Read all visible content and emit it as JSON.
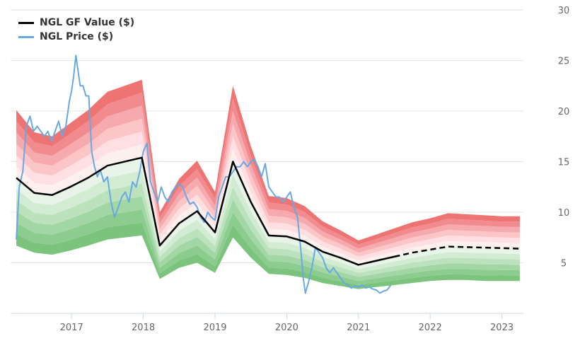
{
  "chart_data": {
    "type": "line",
    "title": "",
    "xlabel": "",
    "ylabel": "",
    "xlim": [
      2016.15,
      2023.3
    ],
    "ylim": [
      0,
      30
    ],
    "x_ticks": [
      {
        "value": 2017,
        "label": "2017"
      },
      {
        "value": 2018,
        "label": "2018"
      },
      {
        "value": 2019,
        "label": "2019"
      },
      {
        "value": 2020,
        "label": "2020"
      },
      {
        "value": 2021,
        "label": "2021"
      },
      {
        "value": 2022,
        "label": "2022"
      },
      {
        "value": 2023,
        "label": "2023"
      }
    ],
    "y_ticks": [
      {
        "value": 5,
        "label": "5"
      },
      {
        "value": 10,
        "label": "10"
      },
      {
        "value": 15,
        "label": "15"
      },
      {
        "value": 20,
        "label": "20"
      },
      {
        "value": 25,
        "label": "25"
      },
      {
        "value": 30,
        "label": "30"
      }
    ],
    "grid": true,
    "legend_position": "top-left",
    "band_colors": {
      "over": [
        "#fff0f0",
        "#ffdfe1",
        "#fcc5c8",
        "#f7aaae",
        "#f28b8f",
        "#ee7373"
      ],
      "under": [
        "#e8f4e8",
        "#d2ebd3",
        "#bce2bd",
        "#a2d6a4",
        "#8dcc8f",
        "#7cc47e"
      ]
    },
    "series": [
      {
        "name": "NGL GF Value ($)",
        "color": "#000000",
        "x": [
          2016.23,
          2016.48,
          2016.73,
          2016.98,
          2017.23,
          2017.5,
          2017.98,
          2018.23,
          2018.5,
          2018.75,
          2019.0,
          2019.25,
          2019.5,
          2019.75,
          2020.0,
          2020.25,
          2020.5,
          2020.75,
          2021.0,
          2021.25,
          2021.5,
          2021.75,
          2022.0,
          2022.25,
          2022.5,
          2022.75,
          2023.0,
          2023.25
        ],
        "values": [
          13.4,
          11.9,
          11.7,
          12.5,
          13.4,
          14.6,
          15.4,
          6.7,
          8.9,
          10.1,
          8.0,
          15.0,
          11.0,
          7.7,
          7.6,
          7.1,
          6.1,
          5.5,
          4.8,
          5.2,
          5.6,
          6.0,
          6.3,
          6.6,
          6.55,
          6.5,
          6.45,
          6.4
        ],
        "projected_from": 2021.5
      },
      {
        "name": "NGL Price ($)",
        "color": "#6aa8e4",
        "x": [
          2016.23,
          2016.27,
          2016.32,
          2016.37,
          2016.42,
          2016.47,
          2016.52,
          2016.57,
          2016.62,
          2016.67,
          2016.72,
          2016.77,
          2016.82,
          2016.87,
          2016.92,
          2016.97,
          2017.0,
          2017.03,
          2017.06,
          2017.09,
          2017.12,
          2017.16,
          2017.2,
          2017.24,
          2017.28,
          2017.32,
          2017.36,
          2017.4,
          2017.45,
          2017.5,
          2017.55,
          2017.6,
          2017.65,
          2017.7,
          2017.75,
          2017.8,
          2017.85,
          2017.9,
          2017.95,
          2018.0,
          2018.05,
          2018.1,
          2018.15,
          2018.2,
          2018.25,
          2018.3,
          2018.35,
          2018.4,
          2018.45,
          2018.5,
          2018.55,
          2018.6,
          2018.65,
          2018.7,
          2018.75,
          2018.8,
          2018.85,
          2018.9,
          2018.95,
          2019.0,
          2019.05,
          2019.1,
          2019.15,
          2019.2,
          2019.25,
          2019.3,
          2019.35,
          2019.4,
          2019.45,
          2019.5,
          2019.55,
          2019.6,
          2019.65,
          2019.7,
          2019.75,
          2019.8,
          2019.85,
          2019.9,
          2019.95,
          2020.0,
          2020.05,
          2020.1,
          2020.15,
          2020.2,
          2020.23,
          2020.26,
          2020.3,
          2020.35,
          2020.4,
          2020.45,
          2020.5,
          2020.55,
          2020.6,
          2020.65,
          2020.7,
          2020.75,
          2020.8,
          2020.85,
          2020.9,
          2020.95,
          2021.0,
          2021.05,
          2021.1,
          2021.15,
          2021.2,
          2021.25,
          2021.3,
          2021.35,
          2021.4,
          2021.45
        ],
        "values": [
          7.3,
          12.5,
          14.0,
          18.5,
          19.5,
          18.0,
          18.5,
          18.0,
          17.5,
          18.0,
          17.0,
          18.0,
          19.0,
          17.5,
          18.5,
          21.0,
          22.0,
          23.5,
          25.5,
          24.0,
          22.5,
          22.5,
          21.5,
          21.5,
          16.0,
          14.5,
          13.5,
          14.2,
          13.0,
          13.5,
          11.0,
          9.5,
          10.5,
          11.5,
          12.0,
          11.0,
          13.0,
          12.5,
          14.0,
          16.0,
          16.8,
          13.0,
          12.0,
          11.0,
          12.5,
          11.5,
          11.0,
          12.0,
          12.5,
          12.8,
          12.5,
          11.5,
          10.8,
          11.0,
          10.5,
          9.5,
          9.0,
          10.0,
          9.5,
          9.2,
          11.5,
          12.5,
          13.5,
          13.5,
          14.0,
          14.5,
          14.5,
          15.0,
          14.5,
          15.0,
          15.2,
          14.5,
          13.5,
          14.8,
          12.5,
          12.0,
          11.5,
          11.5,
          11.0,
          11.5,
          12.0,
          10.5,
          9.5,
          6.0,
          3.5,
          2.0,
          3.0,
          4.5,
          6.5,
          6.0,
          5.5,
          4.5,
          4.0,
          4.5,
          4.0,
          3.5,
          3.0,
          2.8,
          2.5,
          2.7,
          2.6,
          2.8,
          2.5,
          2.6,
          2.4,
          2.3,
          2.0,
          2.2,
          2.3,
          2.8
        ]
      }
    ],
    "bands": {
      "x": [
        2016.23,
        2016.48,
        2016.73,
        2016.98,
        2017.23,
        2017.5,
        2017.98,
        2018.23,
        2018.5,
        2018.75,
        2019.0,
        2019.25,
        2019.5,
        2019.75,
        2020.0,
        2020.25,
        2020.5,
        2020.75,
        2021.0,
        2021.25,
        2021.5,
        2021.75,
        2022.0,
        2022.25,
        2022.5,
        2022.75,
        2023.0,
        2023.25
      ],
      "upper": [
        20.1,
        17.9,
        17.5,
        18.8,
        20.1,
        21.9,
        23.1,
        10.0,
        13.3,
        15.1,
        12.0,
        22.5,
        16.5,
        11.6,
        11.4,
        10.6,
        9.1,
        8.2,
        7.2,
        7.8,
        8.4,
        9.0,
        9.4,
        9.9,
        9.8,
        9.7,
        9.6,
        9.6
      ],
      "lower": [
        6.7,
        6.0,
        5.8,
        6.2,
        6.7,
        7.3,
        7.7,
        3.4,
        4.5,
        5.0,
        4.0,
        7.5,
        5.5,
        3.9,
        3.8,
        3.5,
        3.0,
        2.7,
        2.4,
        2.6,
        2.8,
        3.0,
        3.2,
        3.3,
        3.3,
        3.2,
        3.2,
        3.2
      ]
    }
  }
}
